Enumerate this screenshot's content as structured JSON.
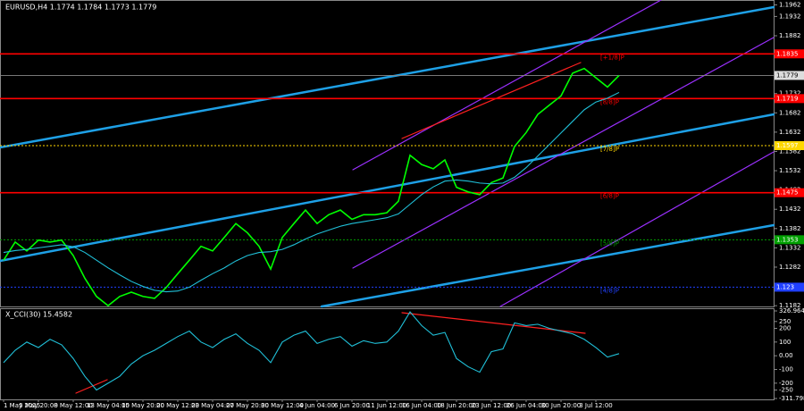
{
  "chart_data": [
    {
      "type": "line",
      "title": "EURUSD,H4 1.1774 1.1784 1.1773 1.1779",
      "categories": [
        "1 May 2025",
        null,
        null,
        "5 May 20:00",
        null,
        null,
        "8 May 12:00",
        null,
        null,
        "13 May 04:00",
        null,
        null,
        "15 May 20:00",
        null,
        null,
        "20 May 12:00",
        null,
        null,
        "23 May 04:00",
        null,
        null,
        "27 May 20:00",
        null,
        null,
        "30 May 12:00",
        null,
        null,
        "4 Jun 04:00",
        null,
        null,
        "6 Jun 20:00",
        null,
        null,
        "11 Jun 12:00",
        null,
        null,
        "16 Jun 04:00",
        null,
        null,
        "18 Jun 20:00",
        null,
        null,
        "23 Jun 12:00",
        null,
        null,
        "26 Jun 04:00",
        null,
        null,
        "30 Jun 20:00",
        null,
        null,
        "3 Jul 12:00",
        null,
        null
      ],
      "series": [
        {
          "color": "#00ff00",
          "values": [
            1.13,
            1.1347,
            1.1324,
            1.1352,
            1.1347,
            1.1352,
            1.1312,
            1.1253,
            1.1206,
            1.1182,
            1.1206,
            1.1217,
            1.1206,
            1.1201,
            1.1229,
            1.1265,
            1.13,
            1.1336,
            1.1324,
            1.1359,
            1.1395,
            1.1371,
            1.1336,
            1.1277,
            1.1359,
            1.1395,
            1.143,
            1.1395,
            1.1418,
            1.143,
            1.1406,
            1.1418,
            1.1418,
            1.1423,
            1.1453,
            1.1572,
            1.1548,
            1.1537,
            1.156,
            1.1489,
            1.1477,
            1.147,
            1.1501,
            1.1513,
            1.1595,
            1.1631,
            1.1678,
            1.1702,
            1.1726,
            1.1785,
            1.1797,
            1.1773,
            1.1749,
            1.1779
          ]
        },
        {
          "color": "#20c0d8",
          "values": [
            1.132,
            1.1325,
            1.1328,
            1.1332,
            1.1336,
            1.134,
            1.1335,
            1.132,
            1.13,
            1.128,
            1.1262,
            1.1245,
            1.1232,
            1.1222,
            1.1218,
            1.122,
            1.123,
            1.1248,
            1.1265,
            1.128,
            1.1298,
            1.1312,
            1.132,
            1.1322,
            1.1328,
            1.134,
            1.1355,
            1.1368,
            1.1378,
            1.1388,
            1.1395,
            1.14,
            1.1405,
            1.141,
            1.142,
            1.1445,
            1.147,
            1.149,
            1.1505,
            1.1508,
            1.1505,
            1.15,
            1.1498,
            1.15,
            1.1515,
            1.154,
            1.157,
            1.16,
            1.163,
            1.166,
            1.169,
            1.171,
            1.172,
            1.1735
          ]
        }
      ],
      "levels": [
        {
          "label": "[+1/8]P",
          "value": 1.1835,
          "color": "#ff0000"
        },
        {
          "label": "[8/8]P",
          "value": 1.1719,
          "color": "#ff0000"
        },
        {
          "label": "[7/8]P",
          "value": 1.1597,
          "color": "#ffd700"
        },
        {
          "label": "[6/8]P",
          "value": 1.1475,
          "color": "#ff0000"
        },
        {
          "label": "[5/8]P",
          "value": 1.1353,
          "color": "#00a000"
        },
        {
          "label": "[4/8]P",
          "value": 1.123,
          "color": "#2040ff"
        }
      ],
      "current_price": 1.1779,
      "ylim": [
        1.118,
        1.197
      ],
      "yticks": [
        1.1182,
        1.1232,
        1.1282,
        1.1332,
        1.1382,
        1.1432,
        1.1482,
        1.1532,
        1.1582,
        1.1632,
        1.1682,
        1.1732,
        1.1782,
        1.1832,
        1.1882,
        1.1932,
        1.1962
      ]
    },
    {
      "type": "line",
      "title": "X_CCI(30) 15.4582",
      "series": [
        {
          "color": "#20c0d8",
          "values": [
            -50,
            40,
            100,
            60,
            120,
            80,
            -20,
            -150,
            -250,
            -200,
            -150,
            -60,
            0,
            40,
            90,
            140,
            180,
            100,
            60,
            120,
            160,
            90,
            40,
            -50,
            100,
            150,
            180,
            90,
            120,
            140,
            70,
            110,
            90,
            100,
            180,
            320,
            220,
            150,
            170,
            -20,
            -80,
            -120,
            30,
            50,
            240,
            220,
            230,
            200,
            180,
            160,
            120,
            60,
            -10,
            15.4582
          ]
        }
      ],
      "ylim": [
        -311.798,
        326.9647
      ],
      "yticks": [
        326.9647,
        250,
        200,
        100,
        {
          "value": 0,
          "label": "0.00"
        },
        -100,
        -200,
        -250,
        -311.798
      ]
    }
  ]
}
